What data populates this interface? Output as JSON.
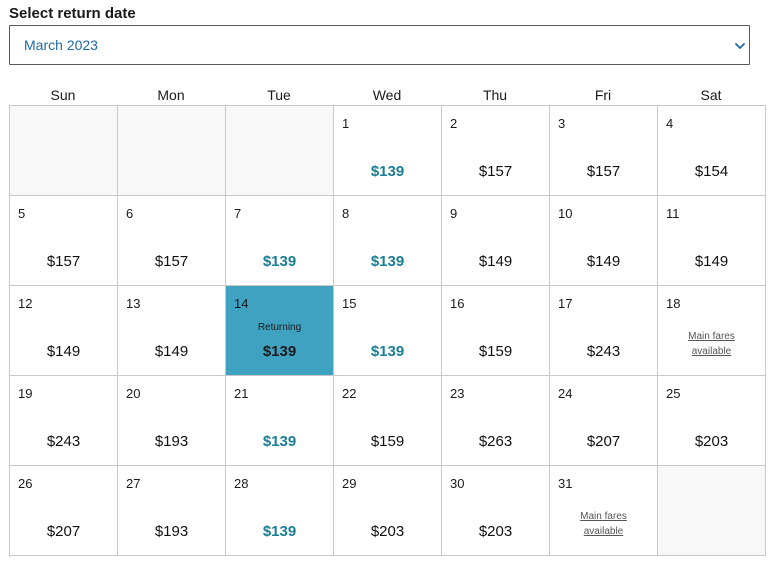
{
  "title": "Select return date",
  "month_select": {
    "value": "March 2023",
    "icon": "chevron-down-icon"
  },
  "weekdays": [
    "Sun",
    "Mon",
    "Tue",
    "Wed",
    "Thu",
    "Fri",
    "Sat"
  ],
  "colors": {
    "accent": "#1f6aa6",
    "low_fare": "#1a7e96",
    "selected_bg": "#3fa2c0"
  },
  "weeks": [
    [
      null,
      null,
      null,
      {
        "day": "1",
        "price": "$139",
        "low": true
      },
      {
        "day": "2",
        "price": "$157"
      },
      {
        "day": "3",
        "price": "$157"
      },
      {
        "day": "4",
        "price": "$154"
      }
    ],
    [
      {
        "day": "5",
        "price": "$157"
      },
      {
        "day": "6",
        "price": "$157"
      },
      {
        "day": "7",
        "price": "$139",
        "low": true
      },
      {
        "day": "8",
        "price": "$139",
        "low": true
      },
      {
        "day": "9",
        "price": "$149"
      },
      {
        "day": "10",
        "price": "$149"
      },
      {
        "day": "11",
        "price": "$149"
      }
    ],
    [
      {
        "day": "12",
        "price": "$149"
      },
      {
        "day": "13",
        "price": "$149"
      },
      {
        "day": "14",
        "price": "$139",
        "selected": true,
        "label": "Returning"
      },
      {
        "day": "15",
        "price": "$139",
        "low": true
      },
      {
        "day": "16",
        "price": "$159"
      },
      {
        "day": "17",
        "price": "$243"
      },
      {
        "day": "18",
        "note": [
          "Main fares",
          "available"
        ]
      }
    ],
    [
      {
        "day": "19",
        "price": "$243"
      },
      {
        "day": "20",
        "price": "$193"
      },
      {
        "day": "21",
        "price": "$139",
        "low": true
      },
      {
        "day": "22",
        "price": "$159"
      },
      {
        "day": "23",
        "price": "$263"
      },
      {
        "day": "24",
        "price": "$207"
      },
      {
        "day": "25",
        "price": "$203"
      }
    ],
    [
      {
        "day": "26",
        "price": "$207"
      },
      {
        "day": "27",
        "price": "$193"
      },
      {
        "day": "28",
        "price": "$139",
        "low": true
      },
      {
        "day": "29",
        "price": "$203"
      },
      {
        "day": "30",
        "price": "$203"
      },
      {
        "day": "31",
        "note": [
          "Main fares",
          "available"
        ]
      },
      null
    ]
  ]
}
